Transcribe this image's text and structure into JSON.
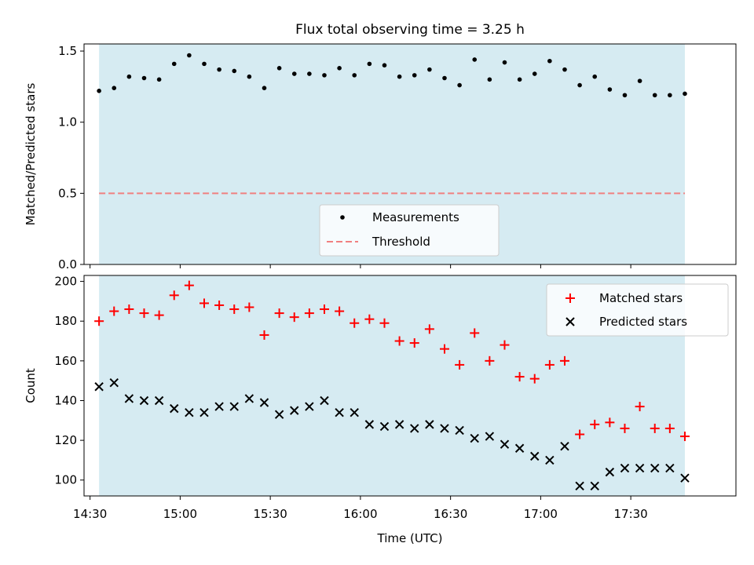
{
  "title": "Flux total observing time = 3.25 h",
  "colors": {
    "span": "#add8e6",
    "threshold": "#f08080",
    "matched": "#ff0000",
    "predicted": "#000000",
    "measurement": "#000000"
  },
  "chart_data": [
    {
      "type": "scatter",
      "ylabel": "Matched/Predicted stars",
      "xlabel": "",
      "ylim": [
        0,
        1.55
      ],
      "yticks": [
        0.0,
        0.5,
        1.0,
        1.5
      ],
      "ytick_labels": [
        "0.0",
        "0.5",
        "1.0",
        "1.5"
      ],
      "observing_span": [
        "14:33",
        "17:48"
      ],
      "threshold": 0.5,
      "legend": {
        "position": "lower-center",
        "entries": [
          "Measurements",
          "Threshold"
        ]
      },
      "x": [
        "14:33",
        "14:38",
        "14:43",
        "14:48",
        "14:53",
        "14:58",
        "15:03",
        "15:08",
        "15:13",
        "15:18",
        "15:23",
        "15:28",
        "15:33",
        "15:38",
        "15:43",
        "15:48",
        "15:53",
        "15:58",
        "16:03",
        "16:08",
        "16:13",
        "16:18",
        "16:23",
        "16:28",
        "16:33",
        "16:38",
        "16:43",
        "16:48",
        "16:53",
        "16:58",
        "17:03",
        "17:08",
        "17:13",
        "17:18",
        "17:23",
        "17:28",
        "17:33",
        "17:38",
        "17:43",
        "17:48"
      ],
      "series": [
        {
          "name": "Measurements",
          "values": [
            1.22,
            1.24,
            1.32,
            1.31,
            1.3,
            1.41,
            1.47,
            1.41,
            1.37,
            1.36,
            1.32,
            1.24,
            1.38,
            1.34,
            1.34,
            1.33,
            1.38,
            1.33,
            1.41,
            1.4,
            1.32,
            1.33,
            1.37,
            1.31,
            1.26,
            1.44,
            1.3,
            1.42,
            1.3,
            1.34,
            1.43,
            1.37,
            1.26,
            1.32,
            1.23,
            1.19,
            1.29,
            1.19,
            1.19,
            1.2
          ]
        },
        {
          "name": "Threshold",
          "values": [
            0.5,
            0.5
          ]
        }
      ]
    },
    {
      "type": "scatter",
      "ylabel": "Count",
      "xlabel": "Time (UTC)",
      "ylim": [
        92,
        203
      ],
      "yticks": [
        100,
        120,
        140,
        160,
        180,
        200
      ],
      "ytick_labels": [
        "100",
        "120",
        "140",
        "160",
        "180",
        "200"
      ],
      "xlim": [
        "14:28",
        "18:05"
      ],
      "xticks": [
        "14:30",
        "15:00",
        "15:30",
        "16:00",
        "16:30",
        "17:00",
        "17:30"
      ],
      "xtick_labels": [
        "14:30",
        "15:00",
        "15:30",
        "16:00",
        "16:30",
        "17:00",
        "17:30"
      ],
      "observing_span": [
        "14:33",
        "17:48"
      ],
      "legend": {
        "position": "upper-right",
        "entries": [
          "Matched stars",
          "Predicted stars"
        ]
      },
      "x": [
        "14:33",
        "14:38",
        "14:43",
        "14:48",
        "14:53",
        "14:58",
        "15:03",
        "15:08",
        "15:13",
        "15:18",
        "15:23",
        "15:28",
        "15:33",
        "15:38",
        "15:43",
        "15:48",
        "15:53",
        "15:58",
        "16:03",
        "16:08",
        "16:13",
        "16:18",
        "16:23",
        "16:28",
        "16:33",
        "16:38",
        "16:43",
        "16:48",
        "16:53",
        "16:58",
        "17:03",
        "17:08",
        "17:13",
        "17:18",
        "17:23",
        "17:28",
        "17:33",
        "17:38",
        "17:43",
        "17:48"
      ],
      "series": [
        {
          "name": "Matched stars",
          "values": [
            180,
            185,
            186,
            184,
            183,
            193,
            198,
            189,
            188,
            186,
            187,
            173,
            184,
            182,
            184,
            186,
            185,
            179,
            181,
            179,
            170,
            169,
            176,
            166,
            158,
            174,
            160,
            168,
            152,
            151,
            158,
            160,
            123,
            128,
            129,
            126,
            137,
            126,
            126,
            122
          ]
        },
        {
          "name": "Predicted stars",
          "values": [
            147,
            149,
            141,
            140,
            140,
            136,
            134,
            134,
            137,
            137,
            141,
            139,
            133,
            135,
            137,
            140,
            134,
            134,
            128,
            127,
            128,
            126,
            128,
            126,
            125,
            121,
            122,
            118,
            116,
            112,
            110,
            117,
            97,
            97,
            104,
            106,
            106,
            106,
            106,
            101
          ]
        }
      ]
    }
  ]
}
